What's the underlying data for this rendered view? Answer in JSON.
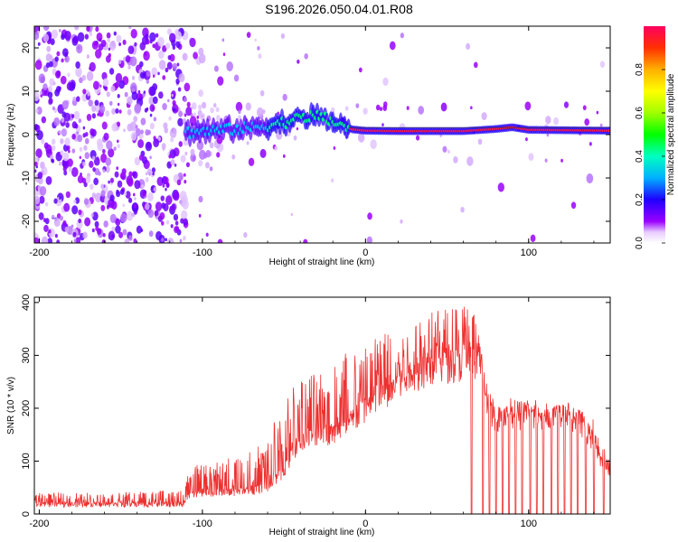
{
  "title": "S196.2026.050.04.01.R08",
  "chart_data": [
    {
      "type": "heatmap",
      "name": "spectrogram",
      "xlabel": "Height of straight line (km)",
      "ylabel": "Frequency (Hz)",
      "xlim": [
        -203,
        150
      ],
      "ylim": [
        -25,
        25
      ],
      "xticks": [
        -200,
        -100,
        0,
        100
      ],
      "yticks": [
        -20,
        -10,
        0,
        10,
        20
      ],
      "colorbar": {
        "label": "Normalized spectral amplitude",
        "range": [
          0,
          1
        ],
        "ticks": [
          "0.0",
          "0.2",
          "0.4",
          "0.6",
          "0.8"
        ],
        "tick_values": [
          0,
          0.2,
          0.4,
          0.6,
          0.8
        ],
        "colors": [
          "#ffffff",
          "#9a00ff",
          "#1e00ff",
          "#00b0ff",
          "#00ffc0",
          "#00ff00",
          "#e0ff00",
          "#ffd000",
          "#ff4000",
          "#ff0060"
        ]
      },
      "ridge": {
        "x": [
          -110,
          -90,
          -70,
          -55,
          -45,
          -38,
          -30,
          -22,
          -15,
          -8,
          0,
          20,
          60,
          80,
          90,
          100,
          150
        ],
        "freq": [
          0.5,
          1,
          1.5,
          2.5,
          3.2,
          4,
          4.3,
          3.3,
          2.2,
          1.2,
          0.9,
          0.8,
          0.8,
          1.3,
          1.7,
          1.1,
          0.9
        ]
      }
    },
    {
      "type": "line",
      "name": "snr",
      "xlabel": "Height of straight line (km)",
      "ylabel": "SNR (10 * v/v)",
      "xlim": [
        -203,
        150
      ],
      "ylim": [
        0,
        410
      ],
      "xticks": [
        -200,
        -100,
        0,
        100
      ],
      "yticks": [
        0,
        100,
        200,
        300,
        400
      ],
      "color": "#ee3030",
      "envelope": {
        "x": [
          -203,
          -150,
          -112,
          -108,
          -100,
          -80,
          -60,
          -50,
          -40,
          -30,
          -20,
          -10,
          0,
          10,
          20,
          30,
          40,
          50,
          60,
          65,
          70,
          72,
          75,
          80,
          100,
          110,
          125,
          132,
          140,
          145,
          150
        ],
        "base": [
          18,
          18,
          18,
          35,
          40,
          42,
          48,
          80,
          140,
          150,
          150,
          170,
          200,
          225,
          245,
          265,
          280,
          285,
          287,
          288,
          290,
          255,
          185,
          180,
          183,
          182,
          182,
          172,
          135,
          90,
          85
        ],
        "peak": [
          40,
          42,
          45,
          90,
          95,
          110,
          140,
          230,
          260,
          280,
          290,
          320,
          330,
          360,
          370,
          380,
          385,
          392,
          400,
          405,
          330,
          300,
          230,
          220,
          220,
          215,
          210,
          200,
          185,
          130,
          120
        ]
      },
      "dropouts_x": [
        65,
        72,
        76,
        80,
        84,
        88,
        92,
        96,
        101,
        105,
        109,
        114,
        118,
        122,
        126,
        130,
        135,
        140,
        146
      ]
    }
  ]
}
